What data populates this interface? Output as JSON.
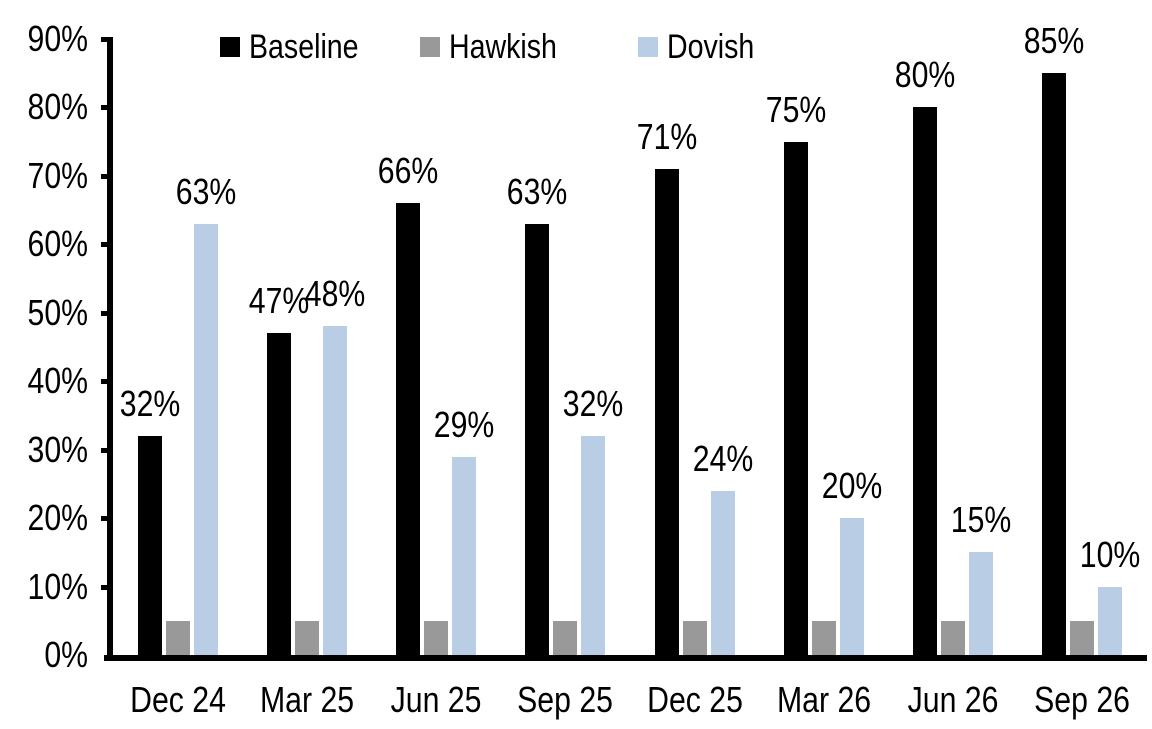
{
  "chart_data": {
    "type": "bar",
    "categories": [
      "Dec 24",
      "Mar 25",
      "Jun 25",
      "Sep 25",
      "Dec 25",
      "Mar 26",
      "Jun 26",
      "Sep 26"
    ],
    "series": [
      {
        "name": "Baseline",
        "color": "#000000",
        "values": [
          32,
          47,
          66,
          63,
          71,
          75,
          80,
          85
        ],
        "data_labels": [
          "32%",
          "47%",
          "66%",
          "63%",
          "71%",
          "75%",
          "80%",
          "85%"
        ]
      },
      {
        "name": "Hawkish",
        "color": "#999999",
        "values": [
          5,
          5,
          5,
          5,
          5,
          5,
          5,
          5
        ],
        "data_labels": []
      },
      {
        "name": "Dovish",
        "color": "#B9CDE5",
        "values": [
          63,
          48,
          29,
          32,
          24,
          20,
          15,
          10
        ],
        "data_labels": [
          "63%",
          "48%",
          "29%",
          "32%",
          "24%",
          "20%",
          "15%",
          "10%"
        ]
      }
    ],
    "y_axis": {
      "min": 0,
      "max": 90,
      "step": 10,
      "tick_labels": [
        "0%",
        "10%",
        "20%",
        "30%",
        "40%",
        "50%",
        "60%",
        "70%",
        "80%",
        "90%"
      ]
    },
    "x_axis": {
      "tick_labels": [
        "Dec 24",
        "Mar 25",
        "Jun 25",
        "Sep 25",
        "Dec 25",
        "Mar 26",
        "Jun 26",
        "Sep 26"
      ]
    },
    "legend": {
      "position": "top",
      "entries": [
        "Baseline",
        "Hawkish",
        "Dovish"
      ]
    },
    "grid": false,
    "axis_color": "#000000",
    "label_color": "#000000"
  }
}
